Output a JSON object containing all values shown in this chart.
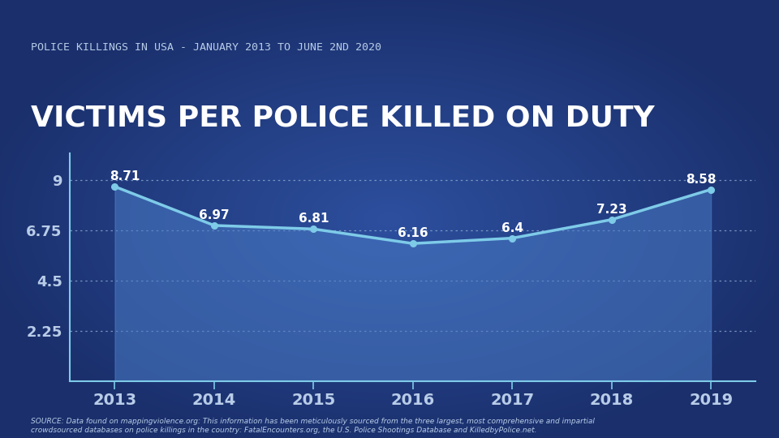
{
  "subtitle": "POLICE KILLINGS IN USA - JANUARY 2013 TO JUNE 2ND 2020",
  "title": "VICTIMS PER POLICE KILLED ON DUTY",
  "years": [
    2013,
    2014,
    2015,
    2016,
    2017,
    2018,
    2019
  ],
  "values": [
    8.71,
    6.97,
    6.81,
    6.16,
    6.4,
    7.23,
    8.58
  ],
  "bg_dark": "#1a2f6b",
  "bg_mid": "#2d4f9e",
  "line_color": "#7ecbe8",
  "fill_color": "#4a7cc7",
  "text_color": "#b8cce8",
  "axis_color": "#7ecbe8",
  "grid_color": "#8aaad0",
  "yticks": [
    2.25,
    4.5,
    6.75,
    9
  ],
  "ylim": [
    0,
    10.2
  ],
  "source_text": "SOURCE: Data found on mappingviolence.org: This information has been meticulously sourced from the three largest, most comprehensive and impartial\ncrowdsourced databases on police killings in the country: FatalEncounters.org, the U.S. Police Shootings Database and KilledbyPolice.net.",
  "subtitle_fontsize": 9.5,
  "title_fontsize": 26,
  "ytick_fontsize": 13,
  "xtick_fontsize": 14,
  "annotation_fontsize": 11
}
